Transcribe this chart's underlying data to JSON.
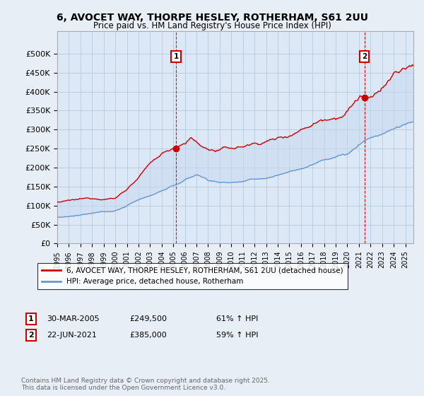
{
  "title_line1": "6, AVOCET WAY, THORPE HESLEY, ROTHERHAM, S61 2UU",
  "title_line2": "Price paid vs. HM Land Registry's House Price Index (HPI)",
  "background_color": "#e8eef5",
  "plot_bg_color": "#dce8f5",
  "red_color": "#cc0000",
  "blue_color": "#6699cc",
  "fill_color": "#c5d8ee",
  "annotation1": {
    "label": "1",
    "date_x": 2005.24,
    "price_y": 249500,
    "date_str": "30-MAR-2005",
    "price": "£249,500",
    "pct": "61% ↑ HPI"
  },
  "annotation2": {
    "label": "2",
    "date_x": 2021.47,
    "price_y": 385000,
    "date_str": "22-JUN-2021",
    "price": "£385,000",
    "pct": "59% ↑ HPI"
  },
  "xmin": 1995.0,
  "xmax": 2025.7,
  "ymin": 0,
  "ymax": 560000,
  "yticks": [
    0,
    50000,
    100000,
    150000,
    200000,
    250000,
    300000,
    350000,
    400000,
    450000,
    500000
  ],
  "ytick_labels": [
    "£0",
    "£50K",
    "£100K",
    "£150K",
    "£200K",
    "£250K",
    "£300K",
    "£350K",
    "£400K",
    "£450K",
    "£500K"
  ],
  "legend_label_red": "6, AVOCET WAY, THORPE HESLEY, ROTHERHAM, S61 2UU (detached house)",
  "legend_label_blue": "HPI: Average price, detached house, Rotherham",
  "footer": "Contains HM Land Registry data © Crown copyright and database right 2025.\nThis data is licensed under the Open Government Licence v3.0."
}
